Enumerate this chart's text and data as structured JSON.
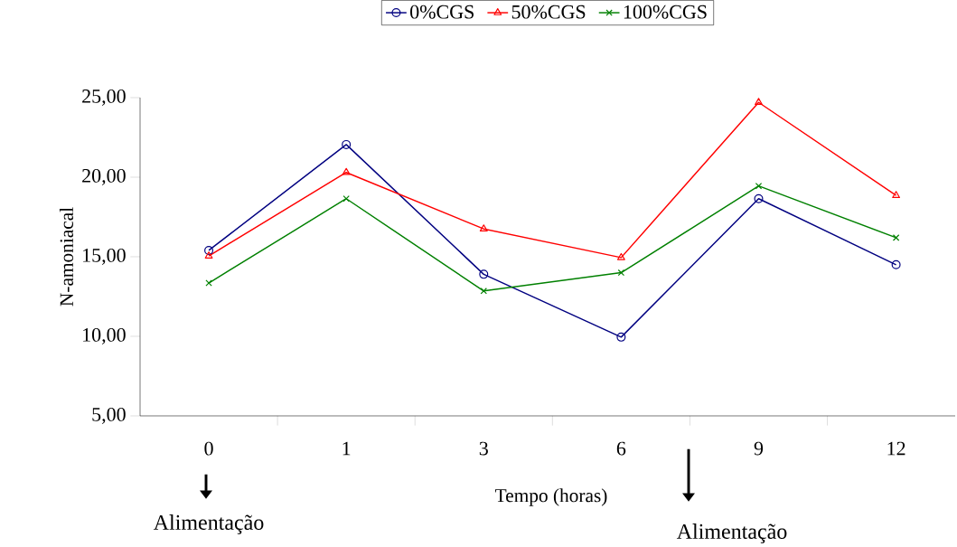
{
  "chart_data": {
    "type": "line",
    "xlabel": "Tempo (horas)",
    "ylabel": "N-amoniacal",
    "categories": [
      "0",
      "1",
      "3",
      "6",
      "9",
      "12"
    ],
    "series": [
      {
        "name": "0%CGS",
        "color": "#000080",
        "marker": "circle",
        "values": [
          15.4,
          22.05,
          13.9,
          9.95,
          18.65,
          14.5
        ]
      },
      {
        "name": "50%CGS",
        "color": "#ff0000",
        "marker": "triangle",
        "values": [
          15.05,
          20.3,
          16.75,
          14.95,
          24.7,
          18.85
        ]
      },
      {
        "name": "100%CGS",
        "color": "#008000",
        "marker": "cross",
        "values": [
          13.35,
          18.65,
          12.85,
          14.0,
          19.45,
          16.2
        ]
      }
    ],
    "ylim": [
      5,
      25
    ],
    "yticks": [
      {
        "value": 5,
        "label": "5,00"
      },
      {
        "value": 10,
        "label": "10,00"
      },
      {
        "value": 15,
        "label": "15,00"
      },
      {
        "value": 20,
        "label": "20,00"
      },
      {
        "value": 25,
        "label": "25,00"
      }
    ],
    "legend": "top",
    "grid": false,
    "line_style": "solid",
    "annotations": [
      "Alimentação",
      "Alimentação"
    ]
  }
}
